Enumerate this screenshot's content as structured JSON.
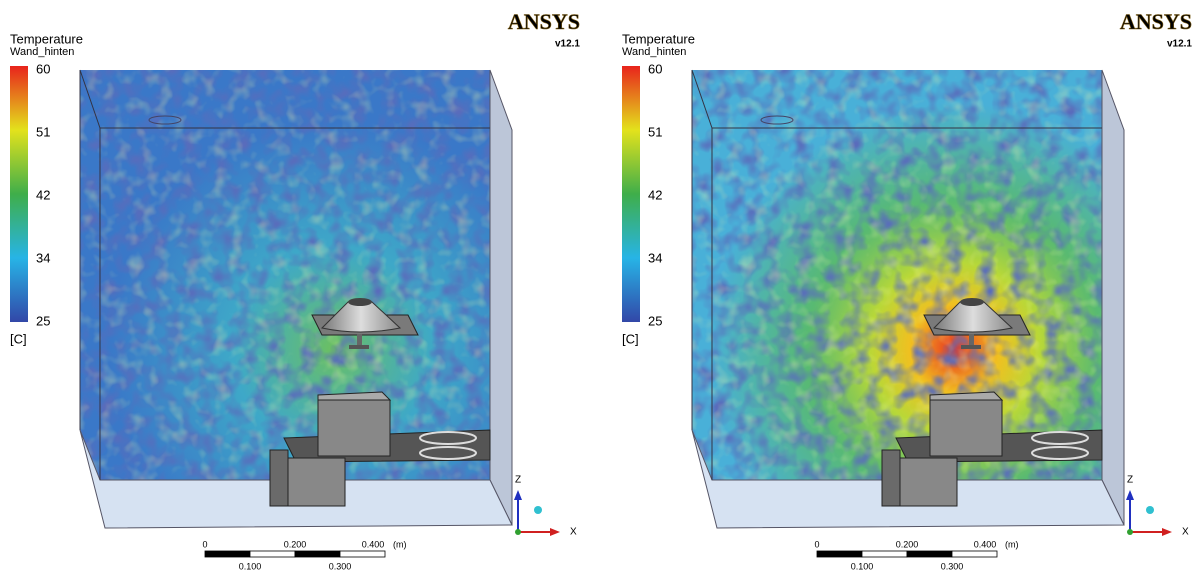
{
  "panels": [
    {
      "legend": {
        "title": "Temperature",
        "subtitle": "Wand_hinten",
        "ticks": [
          "60",
          "51",
          "42",
          "34",
          "25"
        ],
        "unit": "[C]"
      },
      "logo": {
        "brand": "ANSYS",
        "version": "v12.1"
      },
      "scale_bar": {
        "top_labels": [
          "0",
          "0.200",
          "0.400"
        ],
        "unit": "(m)",
        "bottom_labels": [
          "0.100",
          "0.300"
        ]
      },
      "axes": {
        "z": "Z",
        "x": "X"
      }
    },
    {
      "legend": {
        "title": "Temperature",
        "subtitle": "Wand_hinten",
        "ticks": [
          "60",
          "51",
          "42",
          "34",
          "25"
        ],
        "unit": "[C]"
      },
      "logo": {
        "brand": "ANSYS",
        "version": "v12.1"
      },
      "scale_bar": {
        "top_labels": [
          "0",
          "0.200",
          "0.400"
        ],
        "unit": "(m)",
        "bottom_labels": [
          "0.100",
          "0.300"
        ]
      },
      "axes": {
        "z": "Z",
        "x": "X"
      }
    }
  ]
}
